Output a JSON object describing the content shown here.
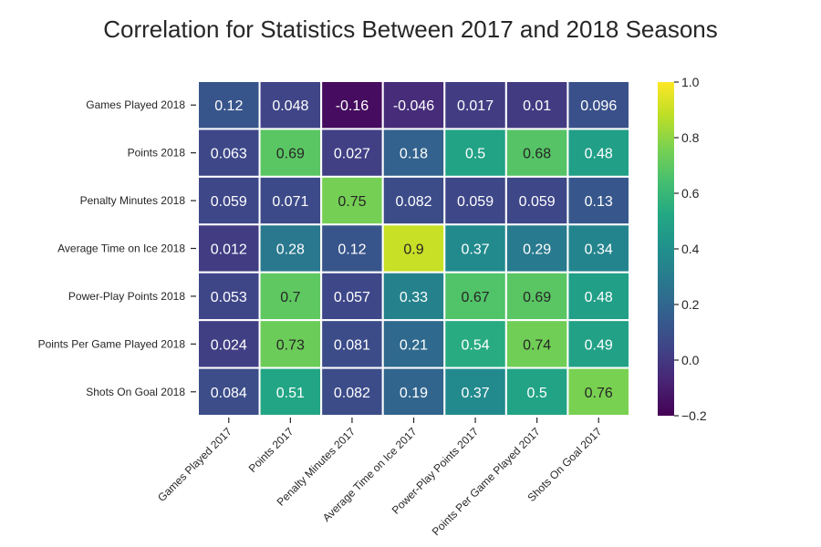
{
  "chart_data": {
    "type": "heatmap",
    "title": "Correlation for Statistics Between 2017 and 2018 Seasons",
    "rows": [
      "Games Played 2018",
      "Points 2018",
      "Penalty Minutes 2018",
      "Average Time on Ice 2018",
      "Power-Play Points 2018",
      "Points Per Game Played 2018",
      "Shots On Goal 2018"
    ],
    "columns": [
      "Games Played 2017",
      "Points 2017",
      "Penalty Minutes 2017",
      "Average Time on Ice 2017",
      "Power-Play Points 2017",
      "Points Per Game Played 2017",
      "Shots On Goal 2017"
    ],
    "values": [
      [
        0.12,
        0.048,
        -0.16,
        -0.046,
        0.017,
        0.01,
        0.096
      ],
      [
        0.063,
        0.69,
        0.027,
        0.18,
        0.5,
        0.68,
        0.48
      ],
      [
        0.059,
        0.071,
        0.75,
        0.082,
        0.059,
        0.059,
        0.13
      ],
      [
        0.012,
        0.28,
        0.12,
        0.9,
        0.37,
        0.29,
        0.34
      ],
      [
        0.053,
        0.7,
        0.057,
        0.33,
        0.67,
        0.69,
        0.48
      ],
      [
        0.024,
        0.73,
        0.081,
        0.21,
        0.54,
        0.74,
        0.49
      ],
      [
        0.084,
        0.51,
        0.082,
        0.19,
        0.37,
        0.5,
        0.76
      ]
    ],
    "labels": [
      [
        "0.12",
        "0.048",
        "-0.16",
        "-0.046",
        "0.017",
        "0.01",
        "0.096"
      ],
      [
        "0.063",
        "0.69",
        "0.027",
        "0.18",
        "0.5",
        "0.68",
        "0.48"
      ],
      [
        "0.059",
        "0.071",
        "0.75",
        "0.082",
        "0.059",
        "0.059",
        "0.13"
      ],
      [
        "0.012",
        "0.28",
        "0.12",
        "0.9",
        "0.37",
        "0.29",
        "0.34"
      ],
      [
        "0.053",
        "0.7",
        "0.057",
        "0.33",
        "0.67",
        "0.69",
        "0.48"
      ],
      [
        "0.024",
        "0.73",
        "0.081",
        "0.21",
        "0.54",
        "0.74",
        "0.49"
      ],
      [
        "0.084",
        "0.51",
        "0.082",
        "0.19",
        "0.37",
        "0.5",
        "0.76"
      ]
    ],
    "colormap": "viridis",
    "vmin": -0.2,
    "vmax": 1.0,
    "colorbar_ticks": [
      "−0.2",
      "0.0",
      "0.2",
      "0.4",
      "0.6",
      "0.8",
      "1.0"
    ],
    "colorbar_tick_values": [
      -0.2,
      0.0,
      0.2,
      0.4,
      0.6,
      0.8,
      1.0
    ],
    "legend": "colorbar-right",
    "grid": false
  }
}
